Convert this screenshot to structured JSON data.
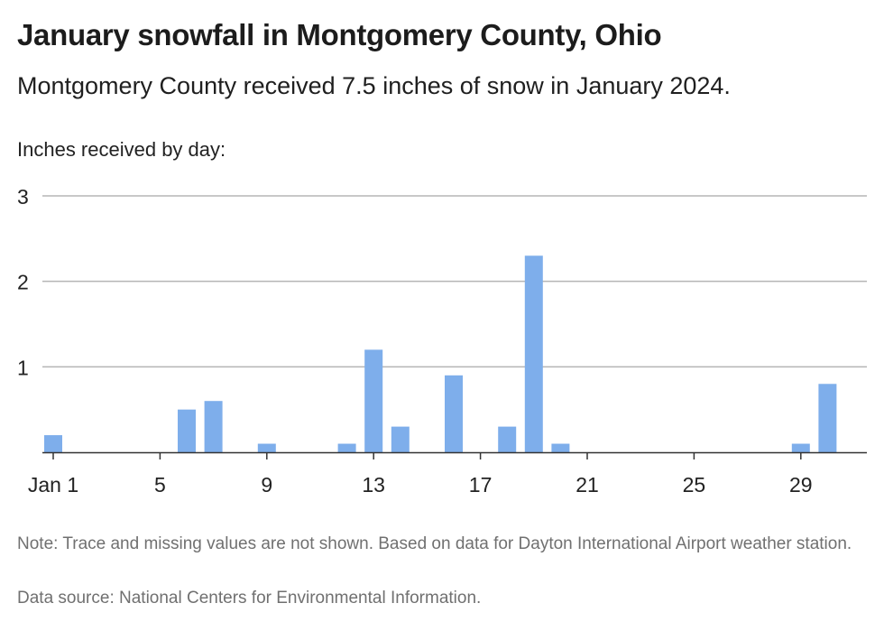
{
  "title": "January snowfall in Montgomery County, Ohio",
  "subtitle": "Montgomery County received 7.5 inches of snow in January 2024.",
  "note": "Note: Trace and missing values are not shown. Based on data for Dayton International Airport weather station.",
  "source": "Data source: National Centers for Environmental Information.",
  "colors": {
    "bar": "#7eaeeb",
    "grid": "#b5b5b5",
    "axis": "#333333"
  },
  "chart_data": {
    "type": "bar",
    "title": "January snowfall in Montgomery County, Ohio",
    "subtitle": "Montgomery County received 7.5 inches of snow in January 2024.",
    "ylabel": "Inches received by day:",
    "xlabel": "",
    "ylim": [
      0,
      3
    ],
    "yticks": [
      1,
      2,
      3
    ],
    "xticks": [
      {
        "day": 1,
        "label": "Jan 1"
      },
      {
        "day": 5,
        "label": "5"
      },
      {
        "day": 9,
        "label": "9"
      },
      {
        "day": 13,
        "label": "13"
      },
      {
        "day": 17,
        "label": "17"
      },
      {
        "day": 21,
        "label": "21"
      },
      {
        "day": 25,
        "label": "25"
      },
      {
        "day": 29,
        "label": "29"
      }
    ],
    "days": [
      1,
      6,
      7,
      9,
      12,
      13,
      14,
      16,
      18,
      19,
      20,
      29,
      30
    ],
    "values": [
      0.2,
      0.5,
      0.6,
      0.1,
      0.1,
      1.2,
      0.3,
      0.9,
      0.3,
      2.3,
      0.1,
      0.1,
      0.8
    ]
  }
}
